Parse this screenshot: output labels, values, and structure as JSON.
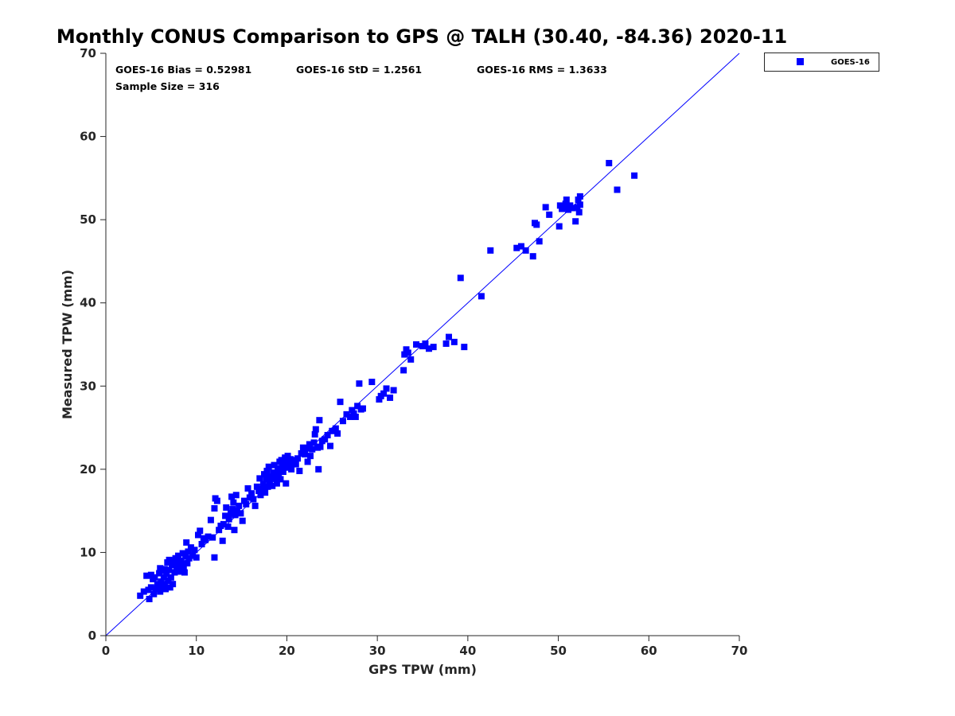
{
  "chart_data": {
    "type": "scatter",
    "title": "Monthly CONUS Comparison to GPS @ TALH (30.40, -84.36) 2020-11",
    "xlabel": "GPS TPW (mm)",
    "ylabel": "Measured TPW (mm)",
    "xlim": [
      0,
      70
    ],
    "ylim": [
      0,
      70
    ],
    "xticks": [
      "0",
      "10",
      "20",
      "30",
      "40",
      "50",
      "60",
      "70"
    ],
    "yticks": [
      "0",
      "10",
      "20",
      "30",
      "40",
      "50",
      "60",
      "70"
    ],
    "grid": false,
    "legend_position": "outside-top-right",
    "stats": {
      "bias": "GOES-16 Bias = 0.52981",
      "std": "GOES-16 StD = 1.2561",
      "rms": "GOES-16 RMS = 1.3633",
      "sample_size": "Sample Size = 316"
    },
    "reference_line": {
      "from": [
        0,
        0
      ],
      "to": [
        70,
        70
      ]
    },
    "series": [
      {
        "name": "GOES-16",
        "color": "#0000ff",
        "marker": "square",
        "points": [
          [
            3.8,
            4.8
          ],
          [
            4.2,
            5.3
          ],
          [
            4.5,
            7.2
          ],
          [
            4.7,
            5.5
          ],
          [
            4.8,
            4.4
          ],
          [
            5.0,
            5.8
          ],
          [
            5.0,
            7.3
          ],
          [
            5.2,
            6.8
          ],
          [
            5.3,
            5.0
          ],
          [
            5.4,
            7.0
          ],
          [
            5.5,
            5.6
          ],
          [
            5.7,
            6.2
          ],
          [
            5.8,
            5.6
          ],
          [
            5.9,
            7.5
          ],
          [
            6.0,
            8.1
          ],
          [
            6.0,
            5.3
          ],
          [
            6.1,
            6.5
          ],
          [
            6.2,
            7.8
          ],
          [
            6.3,
            5.8
          ],
          [
            6.4,
            7.0
          ],
          [
            6.5,
            8.0
          ],
          [
            6.5,
            6.2
          ],
          [
            6.6,
            5.6
          ],
          [
            6.7,
            7.4
          ],
          [
            6.8,
            8.8
          ],
          [
            6.9,
            6.6
          ],
          [
            7.0,
            7.9
          ],
          [
            7.0,
            9.1
          ],
          [
            7.1,
            5.8
          ],
          [
            7.2,
            7.0
          ],
          [
            7.3,
            8.5
          ],
          [
            7.4,
            6.2
          ],
          [
            7.5,
            8.9
          ],
          [
            7.6,
            7.6
          ],
          [
            7.7,
            9.3
          ],
          [
            7.8,
            8.0
          ],
          [
            7.9,
            8.6
          ],
          [
            8.0,
            9.6
          ],
          [
            8.1,
            8.3
          ],
          [
            8.2,
            7.7
          ],
          [
            8.3,
            9.0
          ],
          [
            8.4,
            8.6
          ],
          [
            8.5,
            9.9
          ],
          [
            8.6,
            8.2
          ],
          [
            8.7,
            7.6
          ],
          [
            8.8,
            9.5
          ],
          [
            8.9,
            11.2
          ],
          [
            9.0,
            8.7
          ],
          [
            9.1,
            10.1
          ],
          [
            9.2,
            9.3
          ],
          [
            9.4,
            10.6
          ],
          [
            9.6,
            9.6
          ],
          [
            9.8,
            10.3
          ],
          [
            10.0,
            9.4
          ],
          [
            10.2,
            12.1
          ],
          [
            10.4,
            12.6
          ],
          [
            10.6,
            11.0
          ],
          [
            10.8,
            11.7
          ],
          [
            11.0,
            11.5
          ],
          [
            11.3,
            11.9
          ],
          [
            11.6,
            13.9
          ],
          [
            11.8,
            11.8
          ],
          [
            12.0,
            9.4
          ],
          [
            12.0,
            15.3
          ],
          [
            12.1,
            16.5
          ],
          [
            12.3,
            16.2
          ],
          [
            12.5,
            12.7
          ],
          [
            12.7,
            13.2
          ],
          [
            12.9,
            11.4
          ],
          [
            13.0,
            13.4
          ],
          [
            13.2,
            14.4
          ],
          [
            13.3,
            15.4
          ],
          [
            13.5,
            13.1
          ],
          [
            13.6,
            14.0
          ],
          [
            13.8,
            14.7
          ],
          [
            13.9,
            16.7
          ],
          [
            14.0,
            15.2
          ],
          [
            14.1,
            16.0
          ],
          [
            14.2,
            12.7
          ],
          [
            14.3,
            14.5
          ],
          [
            14.4,
            16.9
          ],
          [
            14.5,
            15.0
          ],
          [
            14.7,
            15.6
          ],
          [
            14.9,
            14.7
          ],
          [
            15.1,
            13.8
          ],
          [
            15.3,
            16.2
          ],
          [
            15.5,
            15.8
          ],
          [
            15.7,
            17.7
          ],
          [
            15.9,
            16.6
          ],
          [
            16.1,
            17.1
          ],
          [
            16.3,
            16.4
          ],
          [
            16.5,
            15.6
          ],
          [
            16.7,
            17.9
          ],
          [
            16.9,
            17.4
          ],
          [
            17.0,
            18.9
          ],
          [
            17.1,
            16.9
          ],
          [
            17.3,
            17.6
          ],
          [
            17.4,
            18.2
          ],
          [
            17.5,
            19.4
          ],
          [
            17.6,
            17.2
          ],
          [
            17.7,
            18.8
          ],
          [
            17.8,
            19.8
          ],
          [
            17.9,
            17.9
          ],
          [
            18.0,
            20.3
          ],
          [
            18.1,
            18.4
          ],
          [
            18.2,
            19.1
          ],
          [
            18.4,
            18.0
          ],
          [
            18.5,
            19.6
          ],
          [
            18.6,
            20.5
          ],
          [
            18.7,
            18.9
          ],
          [
            18.8,
            19.4
          ],
          [
            18.9,
            18.3
          ],
          [
            19.0,
            20.1
          ],
          [
            19.1,
            19.5
          ],
          [
            19.2,
            20.9
          ],
          [
            19.3,
            18.8
          ],
          [
            19.4,
            21.1
          ],
          [
            19.5,
            20.4
          ],
          [
            19.6,
            19.7
          ],
          [
            19.7,
            20.8
          ],
          [
            19.8,
            21.4
          ],
          [
            19.9,
            18.3
          ],
          [
            20.0,
            20.2
          ],
          [
            20.1,
            21.6
          ],
          [
            20.2,
            20.8
          ],
          [
            20.3,
            20.4
          ],
          [
            20.4,
            21.2
          ],
          [
            20.5,
            20.0
          ],
          [
            20.6,
            20.7
          ],
          [
            20.8,
            21.1
          ],
          [
            21.0,
            20.6
          ],
          [
            21.2,
            21.3
          ],
          [
            21.4,
            19.8
          ],
          [
            21.6,
            21.9
          ],
          [
            21.8,
            22.6
          ],
          [
            22.0,
            21.8
          ],
          [
            22.2,
            22.5
          ],
          [
            22.3,
            20.9
          ],
          [
            22.5,
            23.0
          ],
          [
            22.6,
            21.6
          ],
          [
            22.8,
            22.4
          ],
          [
            23.0,
            23.2
          ],
          [
            23.1,
            24.2
          ],
          [
            23.2,
            24.8
          ],
          [
            23.4,
            22.6
          ],
          [
            23.5,
            20.0
          ],
          [
            23.6,
            25.9
          ],
          [
            23.7,
            22.7
          ],
          [
            23.9,
            23.4
          ],
          [
            24.2,
            23.6
          ],
          [
            24.5,
            24.1
          ],
          [
            24.8,
            22.8
          ],
          [
            25.0,
            24.6
          ],
          [
            25.4,
            24.9
          ],
          [
            25.6,
            24.3
          ],
          [
            25.9,
            28.1
          ],
          [
            26.2,
            25.8
          ],
          [
            26.6,
            26.6
          ],
          [
            27.0,
            26.3
          ],
          [
            27.2,
            27.1
          ],
          [
            27.4,
            26.7
          ],
          [
            27.6,
            26.3
          ],
          [
            27.8,
            27.6
          ],
          [
            28.0,
            30.3
          ],
          [
            28.2,
            27.2
          ],
          [
            28.4,
            27.3
          ],
          [
            29.4,
            30.5
          ],
          [
            30.2,
            28.4
          ],
          [
            30.4,
            28.8
          ],
          [
            30.7,
            29.1
          ],
          [
            31.0,
            29.7
          ],
          [
            31.4,
            28.6
          ],
          [
            31.8,
            29.5
          ],
          [
            32.9,
            31.9
          ],
          [
            33.0,
            33.8
          ],
          [
            33.2,
            34.4
          ],
          [
            33.4,
            34.0
          ],
          [
            33.7,
            33.2
          ],
          [
            34.3,
            35.0
          ],
          [
            35.0,
            34.8
          ],
          [
            35.3,
            35.1
          ],
          [
            35.7,
            34.5
          ],
          [
            36.2,
            34.7
          ],
          [
            37.6,
            35.1
          ],
          [
            37.9,
            35.9
          ],
          [
            38.5,
            35.3
          ],
          [
            39.2,
            43.0
          ],
          [
            39.6,
            34.7
          ],
          [
            41.5,
            40.8
          ],
          [
            42.5,
            46.3
          ],
          [
            45.4,
            46.6
          ],
          [
            45.9,
            46.8
          ],
          [
            46.4,
            46.3
          ],
          [
            47.2,
            45.6
          ],
          [
            47.4,
            49.6
          ],
          [
            47.6,
            49.4
          ],
          [
            47.9,
            47.4
          ],
          [
            48.6,
            51.5
          ],
          [
            49.0,
            50.6
          ],
          [
            50.1,
            49.2
          ],
          [
            50.2,
            51.7
          ],
          [
            50.4,
            51.3
          ],
          [
            50.6,
            51.5
          ],
          [
            50.8,
            51.9
          ],
          [
            50.9,
            52.4
          ],
          [
            51.1,
            51.2
          ],
          [
            51.3,
            51.7
          ],
          [
            51.6,
            51.4
          ],
          [
            51.9,
            49.8
          ],
          [
            52.1,
            51.5
          ],
          [
            52.2,
            52.4
          ],
          [
            52.3,
            50.9
          ],
          [
            52.4,
            51.8
          ],
          [
            52.4,
            52.8
          ],
          [
            55.6,
            56.8
          ],
          [
            56.5,
            53.6
          ],
          [
            58.4,
            55.3
          ]
        ]
      }
    ]
  }
}
